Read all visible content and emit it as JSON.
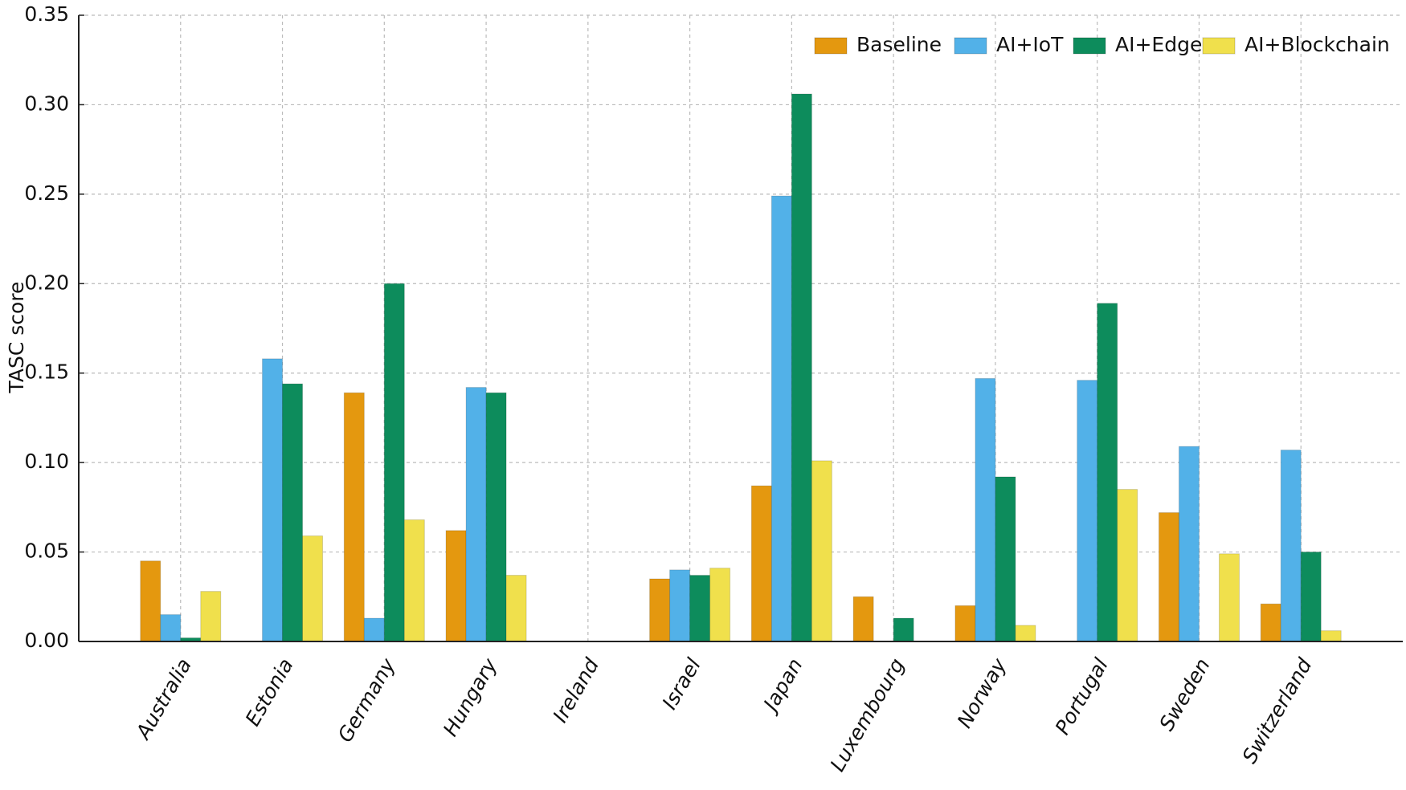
{
  "chart_data": {
    "type": "bar",
    "y_label": "TASC score",
    "categories": [
      "Australia",
      "Estonia",
      "Germany",
      "Hungary",
      "Ireland",
      "Israel",
      "Japan",
      "Luxembourg",
      "Norway",
      "Portugal",
      "Sweden",
      "Switzerland"
    ],
    "series": [
      {
        "name": "Baseline",
        "color": "#e4980f",
        "values": [
          0.045,
          0,
          0.139,
          0.062,
          0,
          0.035,
          0.087,
          0.025,
          0.02,
          0,
          0.072,
          0.021
        ]
      },
      {
        "name": "AI+IoT",
        "color": "#52b1e8",
        "values": [
          0.015,
          0.158,
          0.013,
          0.142,
          0,
          0.04,
          0.249,
          0,
          0.147,
          0.146,
          0.109,
          0.107
        ]
      },
      {
        "name": "AI+Edge",
        "color": "#0d8c5c",
        "values": [
          0.002,
          0.144,
          0.2,
          0.139,
          0,
          0.037,
          0.306,
          0.013,
          0.092,
          0.189,
          0,
          0.05
        ]
      },
      {
        "name": "AI+Blockchain",
        "color": "#f0e04c",
        "values": [
          0.028,
          0.059,
          0.068,
          0.037,
          0,
          0.041,
          0.101,
          0,
          0.009,
          0.085,
          0.049,
          0.006
        ]
      }
    ],
    "ylim": [
      0,
      0.35
    ],
    "yticks": [
      {
        "value": 0,
        "label": "0.00"
      },
      {
        "value": 0.05,
        "label": "0.05"
      },
      {
        "value": 0.1,
        "label": "0.10"
      },
      {
        "value": 0.15,
        "label": "0.15"
      },
      {
        "value": 0.2,
        "label": "0.20"
      },
      {
        "value": 0.25,
        "label": "0.25"
      },
      {
        "value": 0.3,
        "label": "0.30"
      },
      {
        "value": 0.35,
        "label": "0.35"
      }
    ],
    "grid": true,
    "legend": "upper right"
  }
}
